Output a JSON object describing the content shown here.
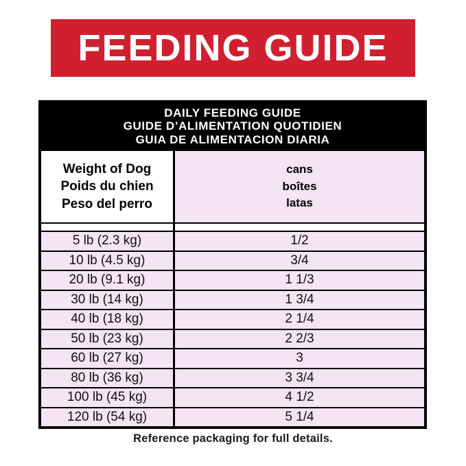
{
  "colors": {
    "banner_red": "#d0202f",
    "row_pink": "#f5e4f1",
    "header_black": "#000000"
  },
  "banner": {
    "title": "FEEDING GUIDE"
  },
  "table": {
    "header_lines": [
      "DAILY FEEDING GUIDE",
      "GUIDE D’ALIMENTATION QUOTIDIEN",
      "GUIA DE ALIMENTACION DIARIA"
    ],
    "columns": [
      {
        "header_lines": [
          "Weight of Dog",
          "Poids du chien",
          "Peso del perro"
        ]
      },
      {
        "header_lines": [
          "cans",
          "boîtes",
          "latas"
        ]
      }
    ],
    "rows": [
      {
        "weight": "5 lb (2.3 kg)",
        "cans": "1/2"
      },
      {
        "weight": "10 lb (4.5 kg)",
        "cans": "3/4"
      },
      {
        "weight": "20 lb (9.1 kg)",
        "cans": "1 1/3"
      },
      {
        "weight": "30 lb (14 kg)",
        "cans": "1 3/4"
      },
      {
        "weight": "40 lb (18 kg)",
        "cans": "2 1/4"
      },
      {
        "weight": "50 lb (23 kg)",
        "cans": "2 2/3"
      },
      {
        "weight": "60 lb (27 kg)",
        "cans": "3"
      },
      {
        "weight": "80 lb (36 kg)",
        "cans": "3 3/4"
      },
      {
        "weight": "100 lb (45 kg)",
        "cans": "4 1/2"
      },
      {
        "weight": "120 lb (54 kg)",
        "cans": "5 1/4"
      }
    ]
  },
  "footer": {
    "note": "Reference packaging for full details."
  }
}
